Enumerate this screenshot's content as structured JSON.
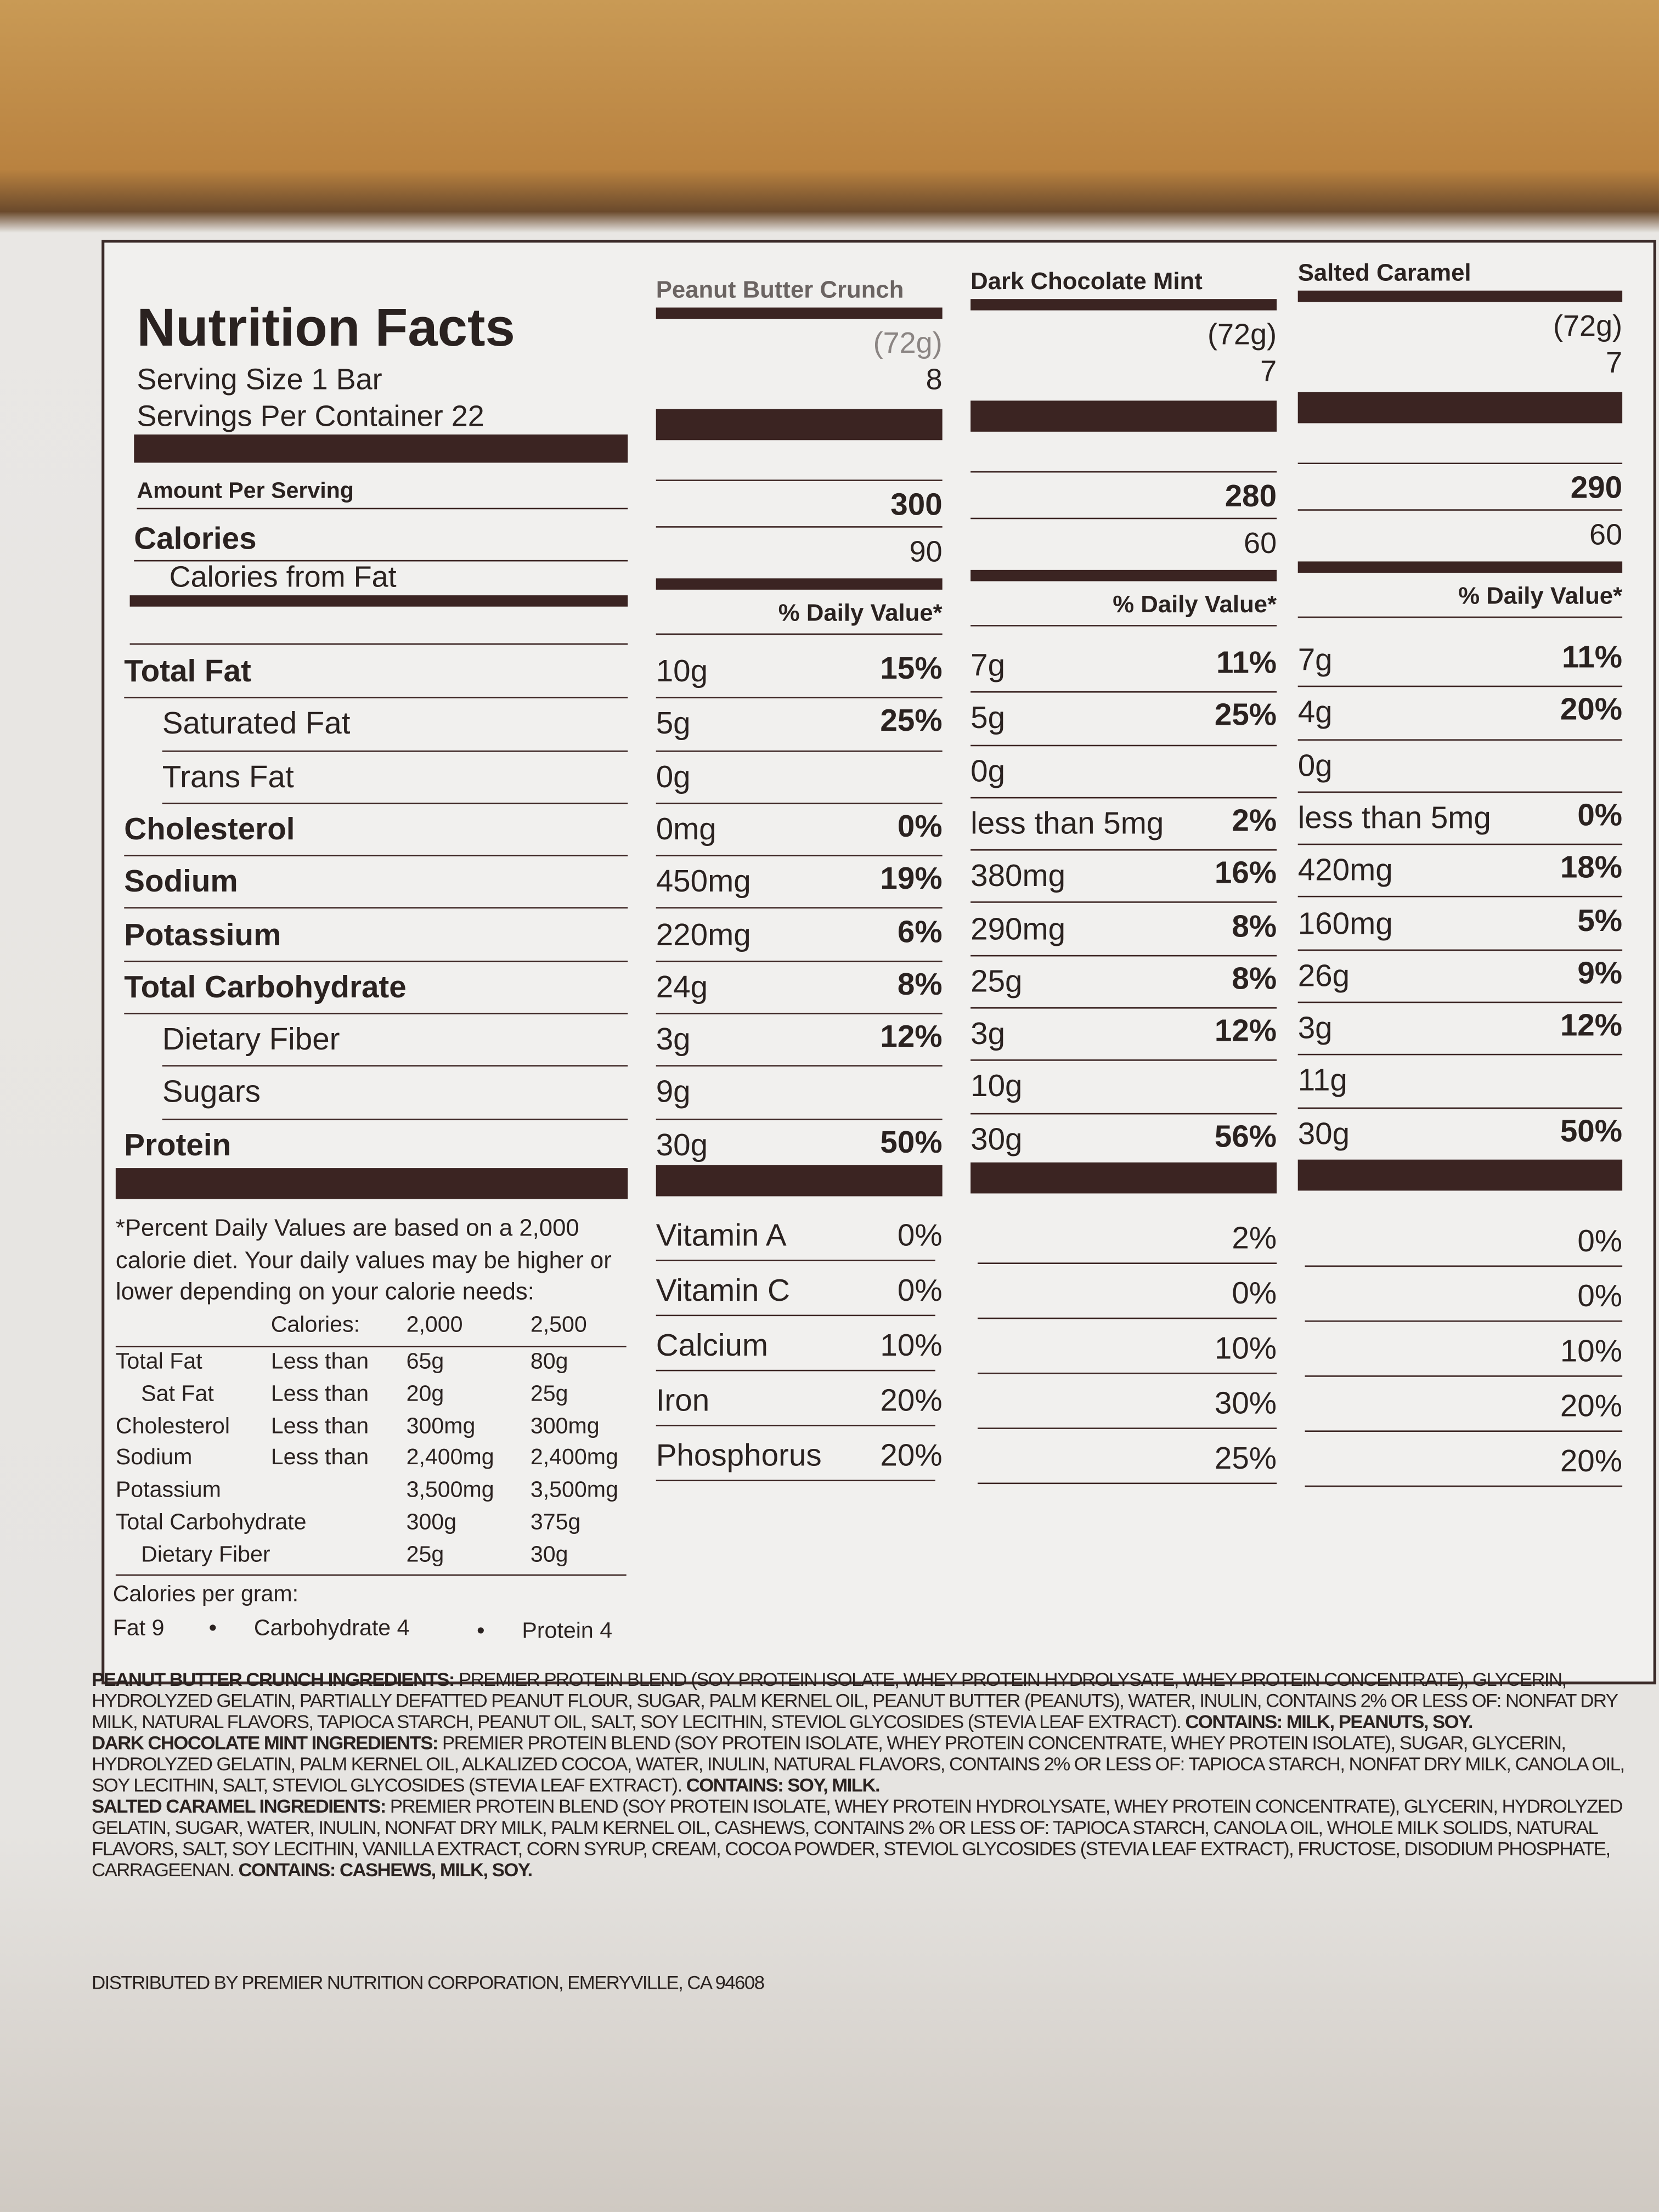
{
  "header": {
    "title": "Nutrition Facts",
    "serving_size": "Serving Size 1 Bar",
    "servings_per_container": "Servings Per Container 22"
  },
  "labels": {
    "amount_per_serving": "Amount Per Serving",
    "calories": "Calories",
    "calories_from_fat": "Calories from Fat"
  },
  "nutrients": [
    "Total Fat",
    "Saturated Fat",
    "Trans Fat",
    "Cholesterol",
    "Sodium",
    "Potassium",
    "Total Carbohydrate",
    "Dietary Fiber",
    "Sugars",
    "Protein"
  ],
  "vitamins": [
    "Vitamin A",
    "Vitamin C",
    "Calcium",
    "Iron",
    "Phosphorus"
  ],
  "products": [
    {
      "name": "Peanut Butter Crunch",
      "serving_weight": "(72g)",
      "servings": "8",
      "calories": "300",
      "calories_from_fat": "90",
      "dv_header": "% Daily Value*",
      "nutrients": [
        {
          "amount": "10g",
          "dv": "15%"
        },
        {
          "amount": "5g",
          "dv": "25%"
        },
        {
          "amount": "0g"
        },
        {
          "amount": "0mg",
          "dv": "0%"
        },
        {
          "amount": "450mg",
          "dv": "19%"
        },
        {
          "amount": "220mg",
          "dv": "6%"
        },
        {
          "amount": "24g",
          "dv": "8%"
        },
        {
          "amount": "3g",
          "dv": "12%"
        },
        {
          "amount": "9g"
        },
        {
          "amount": "30g",
          "dv": "50%"
        }
      ],
      "vitamins": [
        "0%",
        "0%",
        "10%",
        "20%",
        "20%"
      ]
    },
    {
      "name": "Dark Chocolate Mint",
      "serving_weight": "(72g)",
      "servings": "7",
      "calories": "280",
      "calories_from_fat": "60",
      "dv_header": "% Daily Value*",
      "nutrients": [
        {
          "amount": "7g",
          "dv": "11%"
        },
        {
          "amount": "5g",
          "dv": "25%"
        },
        {
          "amount": "0g"
        },
        {
          "amount": "less than 5mg",
          "dv": "2%"
        },
        {
          "amount": "380mg",
          "dv": "16%"
        },
        {
          "amount": "290mg",
          "dv": "8%"
        },
        {
          "amount": "25g",
          "dv": "8%"
        },
        {
          "amount": "3g",
          "dv": "12%"
        },
        {
          "amount": "10g"
        },
        {
          "amount": "30g",
          "dv": "56%"
        }
      ],
      "vitamins": [
        "2%",
        "0%",
        "10%",
        "30%",
        "25%"
      ]
    },
    {
      "name": "Salted Caramel",
      "serving_weight": "(72g)",
      "servings": "7",
      "calories": "290",
      "calories_from_fat": "60",
      "dv_header": "% Daily Value*",
      "nutrients": [
        {
          "amount": "7g",
          "dv": "11%"
        },
        {
          "amount": "4g",
          "dv": "20%"
        },
        {
          "amount": "0g"
        },
        {
          "amount": "less than 5mg",
          "dv": "0%"
        },
        {
          "amount": "420mg",
          "dv": "18%"
        },
        {
          "amount": "160mg",
          "dv": "5%"
        },
        {
          "amount": "26g",
          "dv": "9%"
        },
        {
          "amount": "3g",
          "dv": "12%"
        },
        {
          "amount": "11g"
        },
        {
          "amount": "30g",
          "dv": "50%"
        }
      ],
      "vitamins": [
        "0%",
        "0%",
        "10%",
        "20%",
        "20%"
      ]
    }
  ],
  "footnote": {
    "text": "*Percent Daily Values are based on a 2,000 calorie diet. Your daily values may be higher or lower depending on your calorie needs:",
    "header": [
      "Calories:",
      "2,000",
      "2,500"
    ],
    "rows": [
      [
        "Total Fat",
        "Less than",
        "65g",
        "80g"
      ],
      [
        "Sat Fat",
        "Less than",
        "20g",
        "25g"
      ],
      [
        "Cholesterol",
        "Less than",
        "300mg",
        "300mg"
      ],
      [
        "Sodium",
        "Less than",
        "2,400mg",
        "2,400mg"
      ],
      [
        "Potassium",
        null,
        "3,500mg",
        "3,500mg"
      ],
      [
        "Total Carbohydrate",
        null,
        "300g",
        "375g"
      ],
      [
        "Dietary Fiber",
        null,
        "25g",
        "30g"
      ]
    ],
    "calories_per_gram": "Calories per gram:",
    "fat": "Fat 9",
    "carbohydrate": "Carbohydrate 4",
    "protein": "Protein 4"
  },
  "ingredients": [
    {
      "heading": "PEANUT BUTTER CRUNCH INGREDIENTS:",
      "text": "PREMIER PROTEIN BLEND (SOY PROTEIN ISOLATE, WHEY PROTEIN HYDROLYSATE, WHEY PROTEIN CONCENTRATE), GLYCERIN, HYDROLYZED GELATIN, PARTIALLY DEFATTED PEANUT FLOUR, SUGAR, PALM KERNEL OIL, PEANUT BUTTER (PEANUTS), WATER, INULIN, CONTAINS 2% OR LESS OF: NONFAT DRY MILK, NATURAL FLAVORS, TAPIOCA STARCH, PEANUT OIL, SALT, SOY LECITHIN, STEVIOL GLYCOSIDES (STEVIA LEAF EXTRACT).",
      "contains": "CONTAINS: MILK, PEANUTS, SOY."
    },
    {
      "heading": "DARK CHOCOLATE MINT INGREDIENTS:",
      "text": "PREMIER PROTEIN BLEND (SOY PROTEIN ISOLATE, WHEY PROTEIN CONCENTRATE, WHEY PROTEIN ISOLATE), SUGAR, GLYCERIN, HYDROLYZED GELATIN, PALM KERNEL OIL, ALKALIZED COCOA, WATER, INULIN, NATURAL FLAVORS, CONTAINS 2% OR LESS OF: TAPIOCA STARCH, NONFAT DRY MILK, CANOLA OIL, SOY LECITHIN, SALT, STEVIOL GLYCOSIDES (STEVIA LEAF EXTRACT).",
      "contains": "CONTAINS: SOY, MILK."
    },
    {
      "heading": "SALTED CARAMEL INGREDIENTS:",
      "text": "PREMIER PROTEIN BLEND (SOY PROTEIN ISOLATE, WHEY PROTEIN HYDROLYSATE, WHEY PROTEIN CONCENTRATE), GLYCERIN, HYDROLYZED GELATIN, SUGAR, WATER, INULIN, NONFAT DRY MILK, PALM KERNEL OIL, CASHEWS, CONTAINS 2% OR LESS OF: TAPIOCA STARCH, CANOLA OIL, WHOLE MILK SOLIDS, NATURAL FLAVORS, SALT, SOY LECITHIN, VANILLA EXTRACT, CORN SYRUP, CREAM, COCOA POWDER, STEVIOL GLYCOSIDES (STEVIA LEAF EXTRACT), FRUCTOSE, DISODIUM PHOSPHATE, CARRAGEENAN.",
      "contains": "CONTAINS: CASHEWS, MILK, SOY."
    }
  ],
  "distributor": "DISTRIBUTED BY PREMIER NUTRITION CORPORATION, EMERYVILLE, CA 94608"
}
